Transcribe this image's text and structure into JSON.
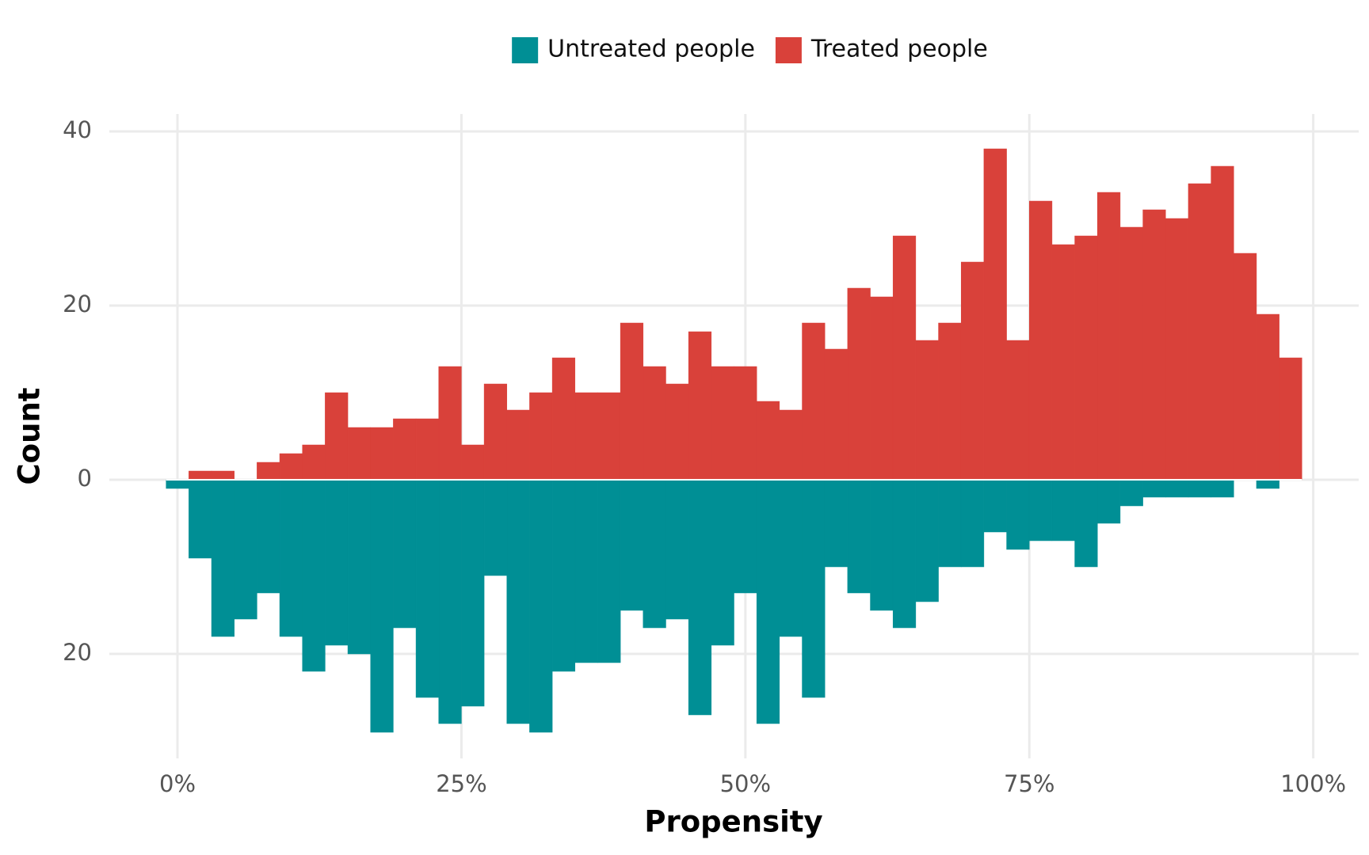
{
  "chart_data": {
    "type": "histogram",
    "xlabel": "Propensity",
    "ylabel": "Count",
    "bins": [
      -0.01,
      0.01,
      0.03,
      0.05,
      0.07,
      0.09,
      0.11,
      0.13,
      0.15,
      0.17,
      0.19,
      0.21,
      0.23,
      0.25,
      0.27,
      0.29,
      0.31,
      0.33,
      0.35,
      0.37,
      0.39,
      0.41,
      0.43,
      0.45,
      0.47,
      0.49,
      0.51,
      0.53,
      0.55,
      0.57,
      0.59,
      0.61,
      0.63,
      0.65,
      0.67,
      0.69,
      0.71,
      0.73,
      0.75,
      0.77,
      0.79,
      0.81,
      0.83,
      0.85,
      0.87,
      0.89,
      0.91,
      0.93,
      0.95,
      0.97,
      0.99
    ],
    "series": [
      {
        "name": "Untreated people",
        "color": "#008f95",
        "values": [
          -1,
          -9,
          -18,
          -16,
          -13,
          -18,
          -22,
          -19,
          -20,
          -29,
          -17,
          -25,
          -28,
          -26,
          -11,
          -28,
          -29,
          -22,
          -21,
          -21,
          -15,
          -17,
          -16,
          -27,
          -19,
          -13,
          -28,
          -18,
          -25,
          -10,
          -13,
          -15,
          -17,
          -14,
          -10,
          -10,
          -6,
          -8,
          -7,
          -7,
          -10,
          -5,
          -3,
          -2,
          -2,
          -2,
          -2,
          0,
          -1,
          0
        ]
      },
      {
        "name": "Treated people",
        "color": "#d9413a",
        "values": [
          0,
          1,
          1,
          0,
          2,
          3,
          4,
          10,
          6,
          6,
          7,
          7,
          13,
          4,
          11,
          8,
          10,
          14,
          10,
          10,
          18,
          13,
          11,
          17,
          13,
          13,
          9,
          8,
          18,
          15,
          22,
          21,
          28,
          16,
          18,
          25,
          38,
          16,
          32,
          27,
          28,
          33,
          29,
          31,
          30,
          34,
          36,
          26,
          19,
          14
        ]
      }
    ],
    "xlim": [
      -0.06,
      1.04
    ],
    "xticks": [
      {
        "value": 0,
        "label": "0%"
      },
      {
        "value": 0.25,
        "label": "25%"
      },
      {
        "value": 0.5,
        "label": "50%"
      },
      {
        "value": 0.75,
        "label": "75%"
      },
      {
        "value": 1,
        "label": "100%"
      }
    ],
    "ylim": [
      -32,
      42
    ],
    "yticks": [
      {
        "value": -20,
        "label": "20"
      },
      0,
      20,
      40
    ],
    "grid": true,
    "legend": "top"
  }
}
